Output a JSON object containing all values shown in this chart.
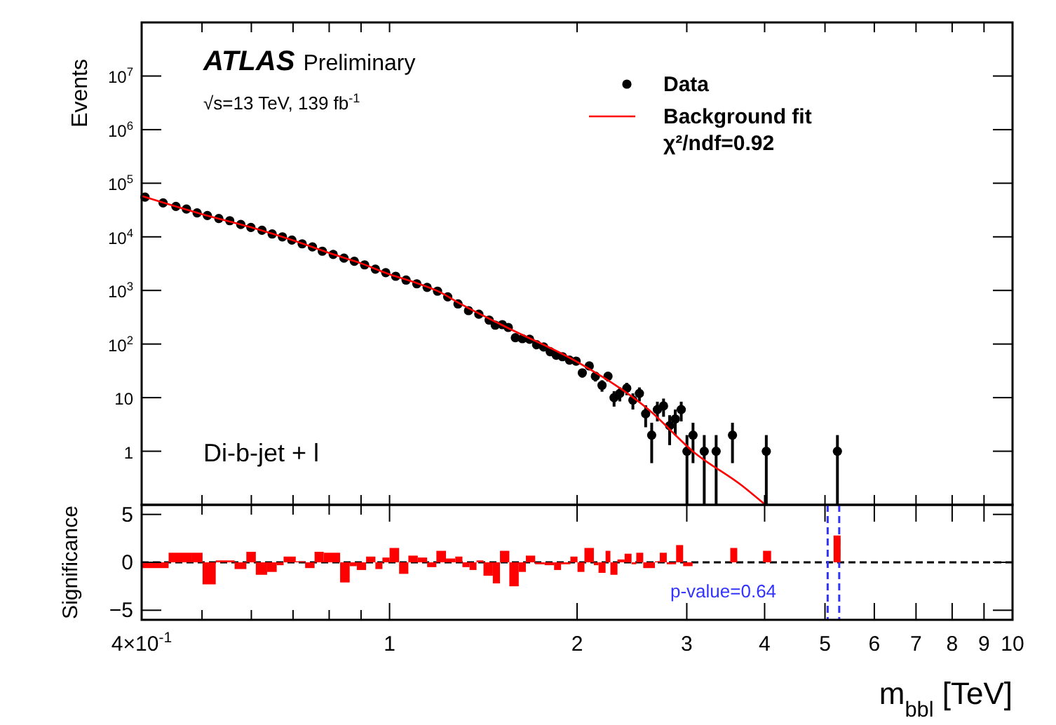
{
  "chart_data": [
    {
      "type": "scatter",
      "ylabel": "Events",
      "xlim": [
        0.4,
        10
      ],
      "ylim": [
        0.1,
        100000000
      ],
      "log": "xy",
      "tick_labels": "y",
      "legend": "top right",
      "xticks": [
        {
          "value": 0.4,
          "label": null
        },
        {
          "value": 0.5,
          "label": null
        },
        {
          "value": 0.6,
          "label": null
        },
        {
          "value": 0.7,
          "label": null
        },
        {
          "value": 0.8,
          "label": null
        },
        {
          "value": 0.9,
          "label": null
        },
        {
          "value": 1,
          "label": null
        },
        {
          "value": 2,
          "label": null
        },
        {
          "value": 3,
          "label": null
        },
        {
          "value": 4,
          "label": null
        },
        {
          "value": 5,
          "label": null
        },
        {
          "value": 6,
          "label": null
        },
        {
          "value": 7,
          "label": null
        },
        {
          "value": 8,
          "label": null
        },
        {
          "value": 9,
          "label": null
        },
        {
          "value": 10,
          "label": null
        }
      ],
      "yticks": [
        1,
        10,
        {
          "value": 100,
          "label": "10$^{2}$"
        },
        {
          "value": 1000,
          "label": "10$^{3}$"
        },
        {
          "value": 10000,
          "label": "10$^{4}$"
        },
        {
          "value": 100000,
          "label": "10$^{5}$"
        },
        {
          "value": 1000000,
          "label": "10$^{6}$"
        },
        {
          "value": 10000000,
          "label": "10$^{7}$"
        }
      ],
      "annotations": [
        "ATLAS Preliminary",
        "√s=13 TeV,  139 fb$^{-1}$",
        "χ²/ndf=0.92",
        "Di-b-jet + l"
      ],
      "series": [
        {
          "name": "Data",
          "marker": "circle",
          "color": "#000000",
          "x": [
            0.405,
            0.433,
            0.454,
            0.472,
            0.491,
            0.51,
            0.532,
            0.554,
            0.577,
            0.599,
            0.624,
            0.648,
            0.673,
            0.697,
            0.724,
            0.752,
            0.78,
            0.812,
            0.845,
            0.878,
            0.912,
            0.949,
            0.986,
            1.023,
            1.063,
            1.106,
            1.149,
            1.194,
            1.24,
            1.288,
            1.339,
            1.391,
            1.445,
            1.478,
            1.517,
            1.551,
            1.592,
            1.634,
            1.678,
            1.722,
            1.768,
            1.811,
            1.852,
            1.895,
            1.945,
            1.993,
            2.039,
            2.092,
            2.14,
            2.193,
            2.242,
            2.293,
            2.342,
            2.403,
            2.458,
            2.518,
            2.577,
            2.635,
            2.691,
            2.753,
            2.816,
            2.875,
            2.939,
            3.002,
            3.07,
            3.2,
            3.344,
            3.552,
            4.025,
            5.235
          ],
          "values": [
            55000,
            43000,
            37000,
            33000,
            28000,
            25000,
            22000,
            20000,
            17000,
            15000,
            13300,
            11300,
            10000,
            8700,
            7400,
            6500,
            5400,
            4700,
            4000,
            3500,
            3000,
            2500,
            2150,
            1840,
            1560,
            1330,
            1140,
            970,
            760,
            560,
            420,
            360,
            280,
            225,
            230,
            204,
            131,
            126,
            123,
            97,
            88,
            72,
            62,
            58,
            50,
            48,
            29,
            39,
            25,
            17,
            25,
            10,
            12,
            15,
            9,
            12,
            5,
            2,
            6,
            7,
            3,
            4,
            6,
            1,
            2,
            1,
            1,
            2,
            1,
            1
          ],
          "errors": [
            null,
            null,
            null,
            null,
            null,
            null,
            null,
            null,
            null,
            null,
            null,
            null,
            null,
            null,
            null,
            null,
            null,
            null,
            null,
            null,
            null,
            null,
            null,
            null,
            null,
            null,
            null,
            null,
            null,
            null,
            null,
            null,
            null,
            null,
            null,
            null,
            null,
            null,
            null,
            null,
            null,
            null,
            null,
            null,
            null,
            null,
            5.4,
            6.2,
            5,
            4.1,
            5,
            3.2,
            3.5,
            3.9,
            3,
            3.5,
            2.2,
            1.4,
            2.4,
            2.6,
            1.7,
            2,
            2.4,
            [
              0.1,
              2
            ],
            1.4,
            [
              0.1,
              2
            ],
            [
              0.1,
              2
            ],
            1.4,
            [
              0.1,
              2
            ],
            [
              0.1,
              2
            ]
          ]
        },
        {
          "name": "Background fit",
          "type": "line",
          "color": "#ff0000",
          "x": [
            0.4,
            0.5,
            0.6,
            0.7,
            0.8,
            0.9,
            1.0,
            1.1,
            1.2,
            1.3,
            1.543,
            2.003,
            2.596,
            3.09,
            3.675,
            4.01
          ],
          "values": [
            58000,
            26500,
            15000,
            8600,
            5000,
            3200,
            2000,
            1400,
            950,
            560,
            204,
            46,
            6.2,
            0.93,
            0.23,
            0.1
          ]
        }
      ]
    },
    {
      "type": "histogram",
      "xlabel": "m$_{bbl}$ [TeV]",
      "ylabel": "Significance",
      "xlim": [
        0.4,
        10
      ],
      "ylim": [
        -6,
        6
      ],
      "log": "x",
      "color": "#ff0000",
      "xticks": [
        {
          "value": 0.4,
          "label": "4×10$^{-1}$"
        },
        {
          "value": 0.5,
          "label": null
        },
        {
          "value": 0.6,
          "label": null
        },
        {
          "value": 0.7,
          "label": null
        },
        {
          "value": 0.8,
          "label": null
        },
        {
          "value": 0.9,
          "label": null
        },
        1,
        2,
        3,
        4,
        5,
        6,
        7,
        8,
        9,
        10
      ],
      "yticks": [
        5,
        0,
        {
          "value": -5,
          "label": "−5"
        }
      ],
      "annotations": [
        "p-value=0.64"
      ],
      "ref_lines": [
        {
          "axis": "y",
          "value": 0,
          "color": "#000000",
          "line_style": "dashed"
        },
        {
          "axis": "x",
          "value": 5.05,
          "color": "#3333ff",
          "line_style": "dashed"
        },
        {
          "axis": "x",
          "value": 5.27,
          "color": "#3333ff",
          "line_style": "dashed"
        }
      ],
      "bins": [
        0.4,
        0.442,
        0.482,
        0.501,
        0.526,
        0.564,
        0.589,
        0.61,
        0.636,
        0.659,
        0.676,
        0.707,
        0.732,
        0.758,
        0.784,
        0.833,
        0.863,
        0.886,
        0.917,
        0.949,
        0.974,
        1.0,
        1.036,
        1.072,
        1.11,
        1.149,
        1.189,
        1.232,
        1.275,
        1.309,
        1.344,
        1.379,
        1.415,
        1.465,
        1.504,
        1.557,
        1.612,
        1.655,
        1.713,
        1.774,
        1.837,
        1.885,
        1.951,
        2.003,
        2.055,
        2.128,
        2.165,
        2.222,
        2.262,
        2.322,
        2.384,
        2.446,
        2.489,
        2.554,
        2.667,
        2.715,
        2.786,
        2.884,
        2.96,
        3.065,
        3.523,
        3.615,
        3.977,
        4.097,
        5.161,
        5.297
      ],
      "values": [
        -0.6,
        1.0,
        1.0,
        -2.3,
        0.2,
        -0.7,
        1.1,
        -1.3,
        -1.0,
        -0.3,
        0.6,
        0.1,
        -0.6,
        1.1,
        1.0,
        -2.1,
        -0.4,
        -0.8,
        0.6,
        -0.7,
        0.5,
        1.5,
        -1.2,
        0.7,
        0.5,
        -0.5,
        1.2,
        0.4,
        0.6,
        -0.5,
        -0.8,
        0.2,
        -1.4,
        -2.2,
        1.2,
        -2.5,
        -1.0,
        0.7,
        -0.2,
        -0.3,
        -0.8,
        -0.2,
        0.6,
        -1.0,
        1.5,
        -0.3,
        -1.1,
        1.2,
        -1.3,
        0.3,
        0.9,
        -0.2,
        1.0,
        -0.6,
        0.1,
        1.0,
        -0.2,
        1.8,
        -0.4,
        null,
        1.5,
        null,
        1.2,
        null,
        2.8
      ]
    }
  ]
}
